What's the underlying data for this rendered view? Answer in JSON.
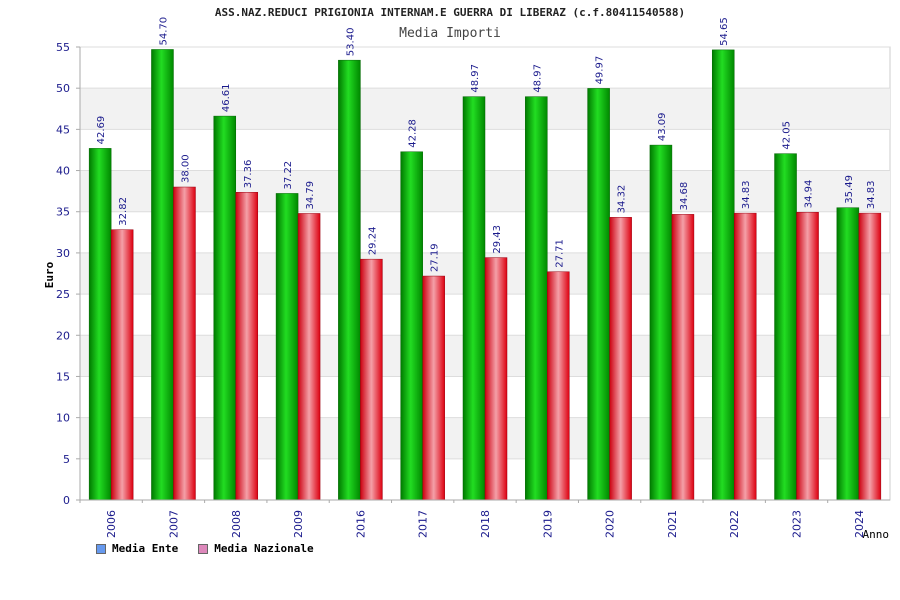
{
  "chart_data": {
    "type": "bar",
    "title": "ASS.NAZ.REDUCI PRIGIONIA INTERNAM.E GUERRA DI LIBERAZ (c.f.80411540588)",
    "subtitle": "Media Importi",
    "xlabel": "Anno",
    "ylabel": "Euro",
    "ylim": [
      0,
      55
    ],
    "yticks": [
      0,
      5,
      10,
      15,
      20,
      25,
      30,
      35,
      40,
      45,
      50,
      55
    ],
    "grid": true,
    "legend_position": "bottom-left",
    "categories": [
      "2006",
      "2007",
      "2008",
      "2009",
      "2016",
      "2017",
      "2018",
      "2019",
      "2020",
      "2021",
      "2022",
      "2023",
      "2024"
    ],
    "series": [
      {
        "name": "Media Ente",
        "color": "#00b000",
        "legend_color": "#6699ee",
        "values": [
          42.69,
          54.7,
          46.61,
          37.22,
          53.4,
          42.28,
          48.97,
          48.97,
          49.97,
          43.09,
          54.65,
          42.05,
          35.49
        ],
        "labels": [
          "42.69",
          "54.70",
          "46.61",
          "37.22",
          "53.40",
          "42.28",
          "48.97",
          "48.97",
          "49.97",
          "43.09",
          "54.65",
          "42.05",
          "35.49"
        ]
      },
      {
        "name": "Media Nazionale",
        "color": "#e80010",
        "legend_color": "#dd88bb",
        "values": [
          32.82,
          38.0,
          37.36,
          34.79,
          29.24,
          27.19,
          29.43,
          27.71,
          34.32,
          34.68,
          34.83,
          34.94,
          34.83
        ],
        "labels": [
          "32.82",
          "38.00",
          "37.36",
          "34.79",
          "29.24",
          "27.19",
          "29.43",
          "27.71",
          "34.32",
          "34.68",
          "34.83",
          "34.94",
          "34.83"
        ]
      }
    ]
  }
}
